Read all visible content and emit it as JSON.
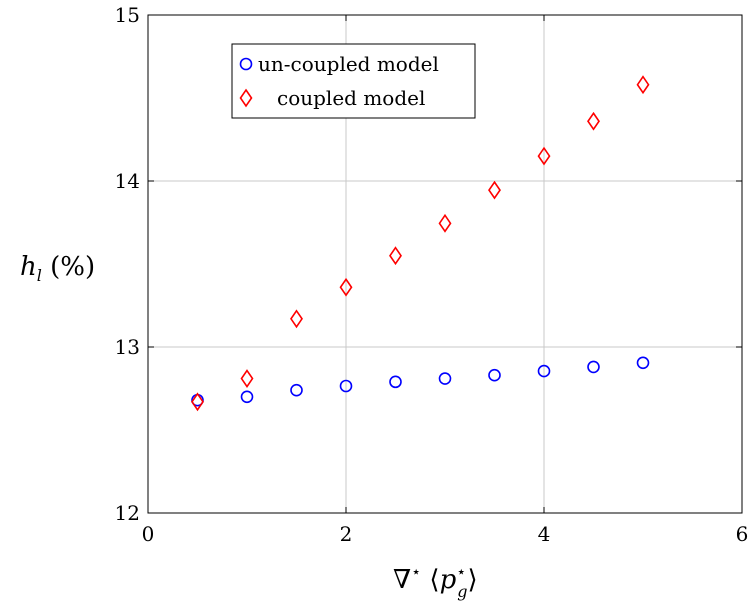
{
  "chart_data": {
    "type": "scatter",
    "xlabel": "∇⋆⟨p⋆g⟩",
    "ylabel": "hl (%)",
    "xlim": [
      0,
      6
    ],
    "ylim": [
      12,
      15
    ],
    "xticks": [
      0,
      2,
      4,
      6
    ],
    "yticks": [
      12,
      13,
      14,
      15
    ],
    "grid": true,
    "legend_position": "top-left",
    "series": [
      {
        "name": "un-coupled model",
        "marker": "circle",
        "color": "#0000ff",
        "x": [
          0.5,
          1.0,
          1.5,
          2.0,
          2.5,
          3.0,
          3.5,
          4.0,
          4.5,
          5.0
        ],
        "y": [
          12.68,
          12.7,
          12.74,
          12.765,
          12.79,
          12.81,
          12.83,
          12.855,
          12.88,
          12.905
        ]
      },
      {
        "name": "coupled model",
        "marker": "diamond",
        "color": "#ff0000",
        "x": [
          0.5,
          1.0,
          1.5,
          2.0,
          2.5,
          3.0,
          3.5,
          4.0,
          4.5,
          5.0
        ],
        "y": [
          12.67,
          12.81,
          13.17,
          13.36,
          13.55,
          13.745,
          13.945,
          14.15,
          14.36,
          14.58
        ]
      }
    ]
  }
}
